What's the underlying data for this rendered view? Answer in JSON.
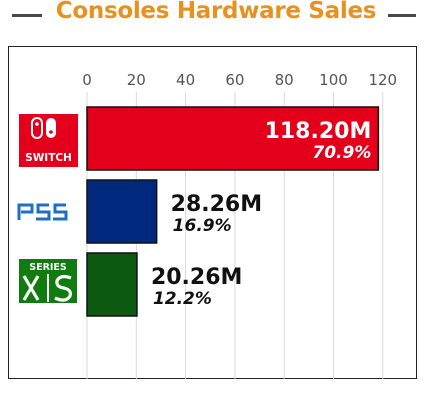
{
  "title": "Consoles Hardware Sales",
  "colors": {
    "title": "#e8911e"
  },
  "chart_data": {
    "type": "bar",
    "orientation": "horizontal",
    "title": "Consoles Hardware Sales",
    "categories": [
      "SWITCH",
      "PS5",
      "SERIES X|S"
    ],
    "values": [
      118.2,
      28.26,
      20.26
    ],
    "value_labels": [
      "118.20M",
      "28.26M",
      "20.26M"
    ],
    "share_labels": [
      "70.9%",
      "16.9%",
      "12.2%"
    ],
    "bar_colors": [
      "#e4001b",
      "#00287c",
      "#0c5a12"
    ],
    "xticks": [
      "0",
      "20",
      "40",
      "60",
      "80",
      "100",
      "120"
    ],
    "xlim": [
      0,
      120
    ],
    "grid": true,
    "category_icons": [
      "nintendo-switch-logo",
      "ps5-logo",
      "xbox-series-xs-logo"
    ],
    "logo_text": {
      "switch": "SWITCH",
      "series": "SERIES"
    }
  }
}
